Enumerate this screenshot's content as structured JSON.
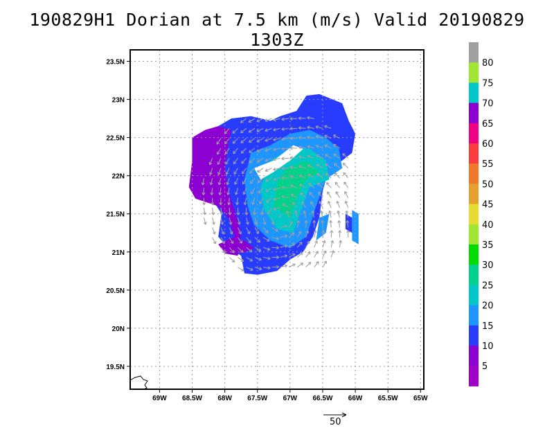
{
  "title": "190829H1 Dorian at 7.5 km (m/s) Valid 20190829 1303Z",
  "map": {
    "lat_range": [
      19.2,
      23.65
    ],
    "lon_range": [
      -69.45,
      -64.95
    ],
    "grid": true,
    "lat_ticks": [
      {
        "value": 23.5,
        "label": "23.5N"
      },
      {
        "value": 23.0,
        "label": "23N"
      },
      {
        "value": 22.5,
        "label": "22.5N"
      },
      {
        "value": 22.0,
        "label": "22N"
      },
      {
        "value": 21.5,
        "label": "21.5N"
      },
      {
        "value": 21.0,
        "label": "21N"
      },
      {
        "value": 20.5,
        "label": "20.5N"
      },
      {
        "value": 20.0,
        "label": "20N"
      },
      {
        "value": 19.5,
        "label": "19.5N"
      }
    ],
    "lon_ticks": [
      {
        "value": -69.0,
        "label": "69W"
      },
      {
        "value": -68.5,
        "label": "68.5W"
      },
      {
        "value": -68.0,
        "label": "68W"
      },
      {
        "value": -67.5,
        "label": "67.5W"
      },
      {
        "value": -67.0,
        "label": "67W"
      },
      {
        "value": -66.5,
        "label": "66.5W"
      },
      {
        "value": -66.0,
        "label": "66W"
      },
      {
        "value": -65.5,
        "label": "65.5W"
      },
      {
        "value": -65.0,
        "label": "65W"
      }
    ],
    "storm_center": {
      "lon": -67.15,
      "lat": 21.45
    },
    "vector_color": "#a0a0a0",
    "reference_vector_label": "50"
  },
  "colorbar": {
    "labels": [
      "80",
      "75",
      "70",
      "65",
      "60",
      "55",
      "50",
      "45",
      "40",
      "35",
      "30",
      "25",
      "20",
      "15",
      "10",
      "5"
    ],
    "colors": [
      "#a0a0a0",
      "#a0e632",
      "#00c8c8",
      "#8c00d2",
      "#f00082",
      "#fa3c3c",
      "#f07828",
      "#e6a02c",
      "#e6dc32",
      "#a0e632",
      "#00dc00",
      "#00d28c",
      "#00c8c8",
      "#1e96ff",
      "#283cff",
      "#8c00d2",
      "#a000c8"
    ]
  }
}
